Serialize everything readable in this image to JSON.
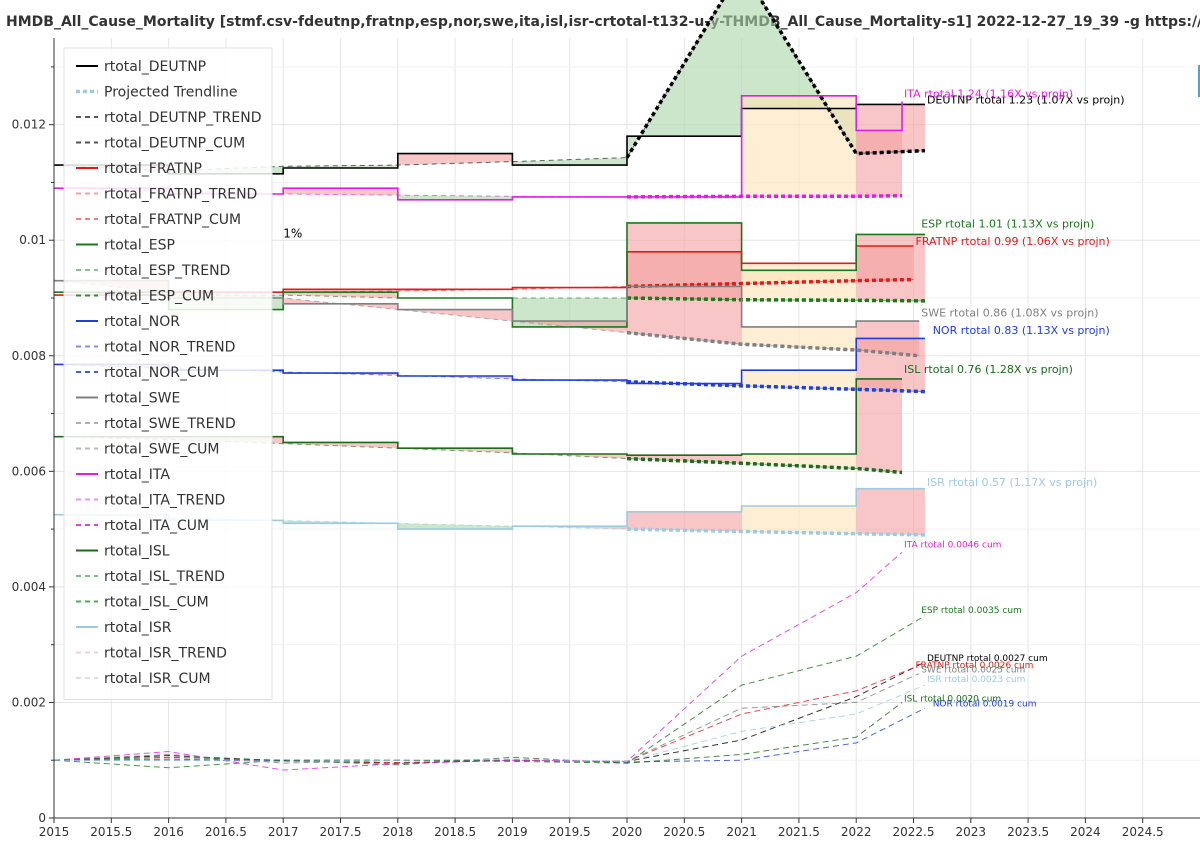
{
  "chart_data": {
    "type": "line",
    "title": "HMDB_All_Cause_Mortality [stmf.csv-fdeutnp,fratnp,esp,nor,swe,ita,isl,isr-crtotal-t132-u-y-THMDB_All_Cause_Mortality-s1] 2022-12-27_19_39 -g  https://mpidr.shinyapps.io/stmortality/",
    "xlim": [
      2015,
      2025
    ],
    "ylim": [
      0,
      0.0135
    ],
    "x_ticks": [
      "2015",
      "2015.5",
      "2016",
      "2016.5",
      "2017",
      "2017.5",
      "2018",
      "2018.5",
      "2019",
      "2019.5",
      "2020",
      "2020.5",
      "2021",
      "2021.5",
      "2022",
      "2022.5",
      "2023",
      "2023.5",
      "2024",
      "2024.5"
    ],
    "y_ticks": [
      "0",
      "0.002",
      "0.004",
      "0.006",
      "0.008",
      "0.01",
      "0.012"
    ],
    "grid": true,
    "legend_position": "top-left",
    "legend": [
      {
        "label": "rtotal_DEUTNP",
        "color": "#000000",
        "style": "solid"
      },
      {
        "label": "Projected Trendline",
        "color": "#9ecae1",
        "style": "dashed-thick"
      },
      {
        "label": "rtotal_DEUTNP_TREND",
        "color": "#555555",
        "style": "dashed"
      },
      {
        "label": "rtotal_DEUTNP_CUM",
        "color": "#555555",
        "style": "dashed"
      },
      {
        "label": "rtotal_FRATNP",
        "color": "#e31a1c",
        "style": "solid"
      },
      {
        "label": "rtotal_FRATNP_TREND",
        "color": "#f4a0a0",
        "style": "dashed"
      },
      {
        "label": "rtotal_FRATNP_CUM",
        "color": "#f08080",
        "style": "dashed"
      },
      {
        "label": "rtotal_ESP",
        "color": "#1b7a1b",
        "style": "solid"
      },
      {
        "label": "rtotal_ESP_TREND",
        "color": "#8fbf8f",
        "style": "dashed"
      },
      {
        "label": "rtotal_ESP_CUM",
        "color": "#2e8b2e",
        "style": "dashed"
      },
      {
        "label": "rtotal_NOR",
        "color": "#1f3fd8",
        "style": "solid"
      },
      {
        "label": "rtotal_NOR_TREND",
        "color": "#8090e0",
        "style": "dashed"
      },
      {
        "label": "rtotal_NOR_CUM",
        "color": "#4060d0",
        "style": "dashed"
      },
      {
        "label": "rtotal_SWE",
        "color": "#808080",
        "style": "solid"
      },
      {
        "label": "rtotal_SWE_TREND",
        "color": "#b0b0b0",
        "style": "dashed"
      },
      {
        "label": "rtotal_SWE_CUM",
        "color": "#b8b8b8",
        "style": "dashed"
      },
      {
        "label": "rtotal_ITA",
        "color": "#e020e0",
        "style": "solid"
      },
      {
        "label": "rtotal_ITA_TREND",
        "color": "#f090f0",
        "style": "dashed"
      },
      {
        "label": "rtotal_ITA_CUM",
        "color": "#e040e0",
        "style": "dashed"
      },
      {
        "label": "rtotal_ISL",
        "color": "#1b6b1b",
        "style": "solid"
      },
      {
        "label": "rtotal_ISL_TREND",
        "color": "#7fbf7f",
        "style": "dashed"
      },
      {
        "label": "rtotal_ISL_CUM",
        "color": "#55aa55",
        "style": "dashed"
      },
      {
        "label": "rtotal_ISR",
        "color": "#9ecae1",
        "style": "solid"
      },
      {
        "label": "rtotal_ISR_TREND",
        "color": "#f0d0d0",
        "style": "dashed"
      },
      {
        "label": "rtotal_ISR_CUM",
        "color": "#dddddd",
        "style": "dashed"
      }
    ],
    "series": [
      {
        "name": "rtotal_DEUTNP",
        "color": "#000000",
        "x": [
          2015,
          2016,
          2017,
          2018,
          2019,
          2020,
          2021,
          2022,
          2022.6
        ],
        "values": [
          0.0113,
          0.01115,
          0.01125,
          0.0115,
          0.0113,
          0.0118,
          0.01228,
          0.01235,
          0.01235
        ],
        "trend": [
          0.0113,
          0.0112,
          0.01128,
          0.0113,
          0.01136,
          0.01143,
          0.0147,
          0.0115,
          0.01155
        ],
        "cum_x": [
          2015,
          2016,
          2017,
          2018,
          2019,
          2020,
          2021,
          2022,
          2022.6
        ],
        "cum": [
          0.001,
          0.00108,
          0.00099,
          0.00095,
          0.001,
          0.00098,
          0.00135,
          0.0021,
          0.0027
        ],
        "label": "DEUTNP rtotal 1.23 (1.07X vs projn)",
        "label_pos": [
          2022.6,
          0.01237
        ],
        "cum_label": "DEUTNP rtotal 0.0027 cum",
        "cum_label_pos": [
          2022.6,
          0.00272
        ]
      },
      {
        "name": "rtotal_FRATNP",
        "color": "#e31a1c",
        "x": [
          2015,
          2016,
          2017,
          2018,
          2019,
          2020,
          2021,
          2022,
          2022.5
        ],
        "values": [
          0.00905,
          0.0091,
          0.00915,
          0.00915,
          0.00918,
          0.0098,
          0.0096,
          0.0099,
          0.0099
        ],
        "trend": [
          0.00905,
          0.00906,
          0.0091,
          0.00912,
          0.00915,
          0.0092,
          0.00925,
          0.0093,
          0.00932
        ],
        "cum_x": [
          2015,
          2016,
          2017,
          2018,
          2019,
          2020,
          2021,
          2022,
          2022.5
        ],
        "cum": [
          0.001,
          0.00102,
          0.00098,
          0.00096,
          0.001,
          0.00098,
          0.0018,
          0.0022,
          0.0026
        ],
        "label": "FRATNP rtotal 0.99 (1.06X vs projn)",
        "label_pos": [
          2022.5,
          0.00992
        ],
        "cum_label": "FRATNP rtotal 0.0026 cum",
        "cum_label_pos": [
          2022.5,
          0.0026
        ]
      },
      {
        "name": "rtotal_ESP",
        "color": "#1b7a1b",
        "x": [
          2015,
          2016,
          2017,
          2018,
          2019,
          2020,
          2021,
          2022,
          2022.6
        ],
        "values": [
          0.0091,
          0.0088,
          0.0091,
          0.009,
          0.0085,
          0.0103,
          0.00948,
          0.0101,
          0.0101
        ],
        "trend": [
          0.0091,
          0.00905,
          0.00905,
          0.009,
          0.009,
          0.009,
          0.00897,
          0.00896,
          0.00895
        ],
        "cum_x": [
          2015,
          2016,
          2017,
          2018,
          2019,
          2020,
          2021,
          2022,
          2022.6
        ],
        "cum": [
          0.001,
          0.00087,
          0.001,
          0.00092,
          0.00105,
          0.00095,
          0.0023,
          0.0028,
          0.0035
        ],
        "label": "ESP rtotal 1.01 (1.13X vs projn)",
        "label_pos": [
          2022.55,
          0.01022
        ],
        "cum_label": "ESP rtotal 0.0035 cum",
        "cum_label_pos": [
          2022.55,
          0.00355
        ]
      },
      {
        "name": "rtotal_NOR",
        "color": "#1f3fd8",
        "x": [
          2015,
          2016,
          2017,
          2018,
          2019,
          2020,
          2021,
          2022,
          2022.6
        ],
        "values": [
          0.00785,
          0.00775,
          0.0077,
          0.00765,
          0.00758,
          0.00752,
          0.00775,
          0.0083,
          0.0083
        ],
        "trend": [
          0.00785,
          0.00778,
          0.00772,
          0.00766,
          0.0076,
          0.00755,
          0.00748,
          0.00742,
          0.00738
        ],
        "cum_x": [
          2015,
          2016,
          2017,
          2018,
          2019,
          2020,
          2021,
          2022,
          2022.6
        ],
        "cum": [
          0.001,
          0.001,
          0.001,
          0.001,
          0.001,
          0.00097,
          0.001,
          0.0013,
          0.0019
        ],
        "label": "NOR rtotal 0.83 (1.13X vs projn)",
        "label_pos": [
          2022.65,
          0.00838
        ],
        "cum_label": "NOR rtotal 0.0019 cum",
        "cum_label_pos": [
          2022.65,
          0.00193
        ]
      },
      {
        "name": "rtotal_SWE",
        "color": "#808080",
        "x": [
          2015,
          2016,
          2017,
          2018,
          2019,
          2020,
          2021,
          2022,
          2022.55
        ],
        "values": [
          0.0093,
          0.009,
          0.0089,
          0.0088,
          0.0086,
          0.0092,
          0.0085,
          0.0086,
          0.0086
        ],
        "trend": [
          0.0093,
          0.0091,
          0.009,
          0.0088,
          0.0086,
          0.0084,
          0.0082,
          0.0081,
          0.008
        ],
        "cum_x": [
          2015,
          2016,
          2017,
          2018,
          2019,
          2020,
          2021,
          2022,
          2022.55
        ],
        "cum": [
          0.001,
          0.0011,
          0.00095,
          0.001,
          0.001,
          0.00098,
          0.0019,
          0.002,
          0.0025
        ],
        "label": "SWE rtotal 0.86 (1.08X vs projn)",
        "label_pos": [
          2022.55,
          0.00868
        ],
        "cum_label": "SWE rtotal 0.0025 cum",
        "cum_label_pos": [
          2022.55,
          0.00252
        ]
      },
      {
        "name": "rtotal_ITA",
        "color": "#e020e0",
        "x": [
          2015,
          2016,
          2017,
          2018,
          2019,
          2020,
          2021,
          2022,
          2022.4
        ],
        "values": [
          0.0109,
          0.0108,
          0.0109,
          0.0107,
          0.01075,
          0.01075,
          0.0125,
          0.0119,
          0.0124
        ],
        "trend": [
          0.0109,
          0.01085,
          0.0108,
          0.01078,
          0.01076,
          0.01075,
          0.01076,
          0.01076,
          0.01077
        ],
        "cum_x": [
          2015,
          2016,
          2017,
          2018,
          2019,
          2020,
          2021,
          2022,
          2022.4
        ],
        "cum": [
          0.001,
          0.00115,
          0.00083,
          0.00094,
          0.001,
          0.00098,
          0.0028,
          0.0039,
          0.0046
        ],
        "label": "ITA rtotal 1.24 (1.16X vs projn)",
        "label_pos": [
          2022.4,
          0.01247
        ],
        "cum_label": "ITA rtotal 0.0046 cum",
        "cum_label_pos": [
          2022.4,
          0.00468
        ]
      },
      {
        "name": "rtotal_ISL",
        "color": "#1b6b1b",
        "x": [
          2015,
          2016,
          2017,
          2018,
          2019,
          2020,
          2021,
          2022,
          2022.4
        ],
        "values": [
          0.0066,
          0.0066,
          0.0065,
          0.0064,
          0.0063,
          0.00628,
          0.0063,
          0.0076,
          0.0076
        ],
        "trend": [
          0.0066,
          0.00655,
          0.00648,
          0.0064,
          0.00632,
          0.00622,
          0.00614,
          0.00605,
          0.00598
        ],
        "cum_x": [
          2015,
          2016,
          2017,
          2018,
          2019,
          2020,
          2021,
          2022,
          2022.4
        ],
        "cum": [
          0.001,
          0.00105,
          0.001,
          0.001,
          0.00098,
          0.00095,
          0.0011,
          0.0014,
          0.002
        ],
        "label": "ISL rtotal 0.76 (1.28X vs projn)",
        "label_pos": [
          2022.4,
          0.0077
        ],
        "cum_label": "ISL rtotal 0.0020 cum",
        "cum_label_pos": [
          2022.4,
          0.00202
        ]
      },
      {
        "name": "rtotal_ISR",
        "color": "#9ecae1",
        "x": [
          2015,
          2016,
          2017,
          2018,
          2019,
          2020,
          2021,
          2022,
          2022.6
        ],
        "values": [
          0.00525,
          0.00515,
          0.0051,
          0.005,
          0.00505,
          0.0053,
          0.0054,
          0.0057,
          0.0057
        ],
        "trend": [
          0.00525,
          0.0052,
          0.00515,
          0.0051,
          0.00505,
          0.005,
          0.00496,
          0.00492,
          0.0049
        ],
        "cum_x": [
          2015,
          2016,
          2017,
          2018,
          2019,
          2020,
          2021,
          2022,
          2022.6
        ],
        "cum": [
          0.001,
          0.001,
          0.00098,
          0.001,
          0.00102,
          0.00098,
          0.0015,
          0.0018,
          0.0023
        ],
        "label": "ISR rtotal 0.57 (1.17X vs projn)",
        "label_pos": [
          2022.6,
          0.00575
        ],
        "cum_label": "ISR rtotal 0.0023 cum",
        "cum_label_pos": [
          2022.6,
          0.00235
        ]
      }
    ],
    "annotations": [
      {
        "text": "1%",
        "x": 2017.0,
        "y": 0.01005
      }
    ]
  },
  "colors": {
    "excess_fill": "#f4a0a0",
    "deficit_fill": "#a8d5a8",
    "projected_fill": "#fde2b8",
    "blue_fill": "#c6dbef",
    "grid": "#e5e5e5",
    "axis": "#333333"
  }
}
